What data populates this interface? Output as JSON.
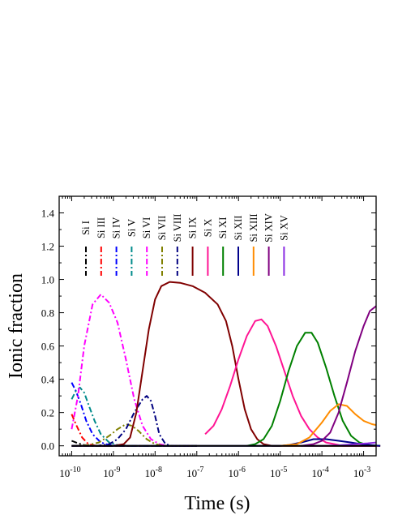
{
  "chart_data": {
    "type": "line",
    "title": "",
    "xlabel": "Time (s)",
    "ylabel": "Ionic fraction",
    "xscale": "log",
    "xlim_exp": [
      -10.3,
      -2.7
    ],
    "ylim": [
      -0.06,
      1.5
    ],
    "grid": false,
    "legend_placement": "top, vertical labels",
    "x_ticks": [
      {
        "base": "10",
        "exp": "-10",
        "value": -10
      },
      {
        "base": "10",
        "exp": "-9",
        "value": -9
      },
      {
        "base": "10",
        "exp": "-8",
        "value": -8
      },
      {
        "base": "10",
        "exp": "-7",
        "value": -7
      },
      {
        "base": "10",
        "exp": "-6",
        "value": -6
      },
      {
        "base": "10",
        "exp": "-5",
        "value": -5
      },
      {
        "base": "10",
        "exp": "-4",
        "value": -4
      },
      {
        "base": "10",
        "exp": "-3",
        "value": -3
      }
    ],
    "y_ticks": [
      "0.0",
      "0.2",
      "0.4",
      "0.6",
      "0.8",
      "1.0",
      "1.2",
      "1.4"
    ],
    "series": [
      {
        "name": "Si I",
        "color": "#000000",
        "dash": "dashdot",
        "points": [
          [
            -10,
            0.03
          ],
          [
            -9.85,
            0.015
          ],
          [
            -9.7,
            0.005
          ],
          [
            -9.5,
            0
          ],
          [
            -7,
            0
          ]
        ]
      },
      {
        "name": "Si III",
        "color": "#ff0000",
        "dash": "dashdot",
        "points": [
          [
            -10,
            0.19
          ],
          [
            -9.9,
            0.13
          ],
          [
            -9.75,
            0.05
          ],
          [
            -9.6,
            0.01
          ],
          [
            -9.4,
            0
          ],
          [
            -7,
            0
          ]
        ]
      },
      {
        "name": "Si IV",
        "color": "#0000ff",
        "dash": "dashdot",
        "points": [
          [
            -10,
            0.38
          ],
          [
            -9.9,
            0.33
          ],
          [
            -9.78,
            0.25
          ],
          [
            -9.65,
            0.15
          ],
          [
            -9.5,
            0.07
          ],
          [
            -9.3,
            0.02
          ],
          [
            -9.1,
            0.005
          ],
          [
            -8.8,
            0
          ],
          [
            -7,
            0
          ]
        ]
      },
      {
        "name": "Si V",
        "color": "#008b8b",
        "dash": "dashdot",
        "points": [
          [
            -10,
            0.28
          ],
          [
            -9.9,
            0.33
          ],
          [
            -9.8,
            0.35
          ],
          [
            -9.7,
            0.32
          ],
          [
            -9.6,
            0.25
          ],
          [
            -9.45,
            0.15
          ],
          [
            -9.3,
            0.07
          ],
          [
            -9.1,
            0.02
          ],
          [
            -8.9,
            0.005
          ],
          [
            -8.6,
            0
          ],
          [
            -7,
            0
          ]
        ]
      },
      {
        "name": "Si VI",
        "color": "#ff00ff",
        "dash": "dashdot",
        "points": [
          [
            -10,
            0.1
          ],
          [
            -9.85,
            0.3
          ],
          [
            -9.7,
            0.6
          ],
          [
            -9.5,
            0.85
          ],
          [
            -9.3,
            0.91
          ],
          [
            -9.1,
            0.86
          ],
          [
            -8.9,
            0.74
          ],
          [
            -8.7,
            0.52
          ],
          [
            -8.5,
            0.28
          ],
          [
            -8.3,
            0.12
          ],
          [
            -8.1,
            0.04
          ],
          [
            -7.9,
            0.01
          ],
          [
            -7.7,
            0
          ],
          [
            -7,
            0
          ]
        ]
      },
      {
        "name": "Si VII",
        "color": "#808000",
        "dash": "dashdot",
        "points": [
          [
            -10,
            0
          ],
          [
            -9.6,
            0.005
          ],
          [
            -9.35,
            0.02
          ],
          [
            -9.1,
            0.06
          ],
          [
            -8.9,
            0.1
          ],
          [
            -8.7,
            0.13
          ],
          [
            -8.55,
            0.12
          ],
          [
            -8.4,
            0.09
          ],
          [
            -8.2,
            0.04
          ],
          [
            -8,
            0.01
          ],
          [
            -7.8,
            0
          ],
          [
            -7,
            0
          ]
        ]
      },
      {
        "name": "Si VIII",
        "color": "#000080",
        "dash": "dashdot",
        "points": [
          [
            -10,
            0
          ],
          [
            -9.4,
            0
          ],
          [
            -9.1,
            0.01
          ],
          [
            -8.9,
            0.04
          ],
          [
            -8.7,
            0.1
          ],
          [
            -8.5,
            0.2
          ],
          [
            -8.3,
            0.28
          ],
          [
            -8.2,
            0.3
          ],
          [
            -8.1,
            0.27
          ],
          [
            -8.0,
            0.18
          ],
          [
            -7.9,
            0.07
          ],
          [
            -7.75,
            0.01
          ],
          [
            -7.6,
            0
          ],
          [
            -7,
            0
          ]
        ]
      },
      {
        "name": "Si IX",
        "color": "#800000",
        "dash": "solid",
        "points": [
          [
            -10,
            0
          ],
          [
            -9,
            0
          ],
          [
            -8.75,
            0.01
          ],
          [
            -8.6,
            0.05
          ],
          [
            -8.45,
            0.2
          ],
          [
            -8.3,
            0.45
          ],
          [
            -8.15,
            0.7
          ],
          [
            -8.0,
            0.88
          ],
          [
            -7.85,
            0.96
          ],
          [
            -7.65,
            0.985
          ],
          [
            -7.4,
            0.98
          ],
          [
            -7.1,
            0.96
          ],
          [
            -6.8,
            0.92
          ],
          [
            -6.5,
            0.85
          ],
          [
            -6.3,
            0.75
          ],
          [
            -6.15,
            0.6
          ],
          [
            -6.0,
            0.4
          ],
          [
            -5.85,
            0.22
          ],
          [
            -5.7,
            0.1
          ],
          [
            -5.55,
            0.04
          ],
          [
            -5.4,
            0.01
          ],
          [
            -5.2,
            0
          ],
          [
            -2.6,
            0
          ]
        ]
      },
      {
        "name": "Si X",
        "color": "#ff1493",
        "dash": "solid",
        "points": [
          [
            -6.8,
            0.07
          ],
          [
            -6.6,
            0.12
          ],
          [
            -6.4,
            0.22
          ],
          [
            -6.2,
            0.36
          ],
          [
            -6.0,
            0.52
          ],
          [
            -5.8,
            0.66
          ],
          [
            -5.6,
            0.75
          ],
          [
            -5.45,
            0.76
          ],
          [
            -5.3,
            0.72
          ],
          [
            -5.1,
            0.6
          ],
          [
            -4.9,
            0.45
          ],
          [
            -4.7,
            0.3
          ],
          [
            -4.5,
            0.18
          ],
          [
            -4.3,
            0.1
          ],
          [
            -4.1,
            0.05
          ],
          [
            -3.9,
            0.02
          ],
          [
            -3.7,
            0.01
          ],
          [
            -3.5,
            0
          ],
          [
            -2.6,
            0
          ]
        ]
      },
      {
        "name": "Si XI",
        "color": "#008000",
        "dash": "solid",
        "points": [
          [
            -5.8,
            0
          ],
          [
            -5.6,
            0.01
          ],
          [
            -5.4,
            0.04
          ],
          [
            -5.2,
            0.12
          ],
          [
            -5.0,
            0.27
          ],
          [
            -4.8,
            0.45
          ],
          [
            -4.6,
            0.6
          ],
          [
            -4.4,
            0.68
          ],
          [
            -4.25,
            0.68
          ],
          [
            -4.1,
            0.62
          ],
          [
            -3.9,
            0.47
          ],
          [
            -3.7,
            0.3
          ],
          [
            -3.5,
            0.15
          ],
          [
            -3.3,
            0.06
          ],
          [
            -3.1,
            0.02
          ],
          [
            -2.9,
            0.005
          ],
          [
            -2.6,
            0
          ]
        ]
      },
      {
        "name": "Si XII",
        "color": "#00008b",
        "dash": "solid",
        "points": [
          [
            -10,
            0
          ],
          [
            -5,
            0
          ],
          [
            -4.8,
            0.005
          ],
          [
            -4.5,
            0.02
          ],
          [
            -4.2,
            0.04
          ],
          [
            -3.9,
            0.04
          ],
          [
            -3.6,
            0.03
          ],
          [
            -3.3,
            0.02
          ],
          [
            -3.0,
            0.008
          ],
          [
            -2.75,
            0.003
          ],
          [
            -2.6,
            0
          ]
        ]
      },
      {
        "name": "Si XIII",
        "color": "#ff8c00",
        "dash": "solid",
        "points": [
          [
            -5.0,
            0
          ],
          [
            -4.6,
            0.01
          ],
          [
            -4.3,
            0.05
          ],
          [
            -4.0,
            0.14
          ],
          [
            -3.8,
            0.21
          ],
          [
            -3.6,
            0.25
          ],
          [
            -3.4,
            0.24
          ],
          [
            -3.2,
            0.19
          ],
          [
            -3.0,
            0.15
          ],
          [
            -2.8,
            0.13
          ],
          [
            -2.7,
            0.125
          ]
        ]
      },
      {
        "name": "Si XIV",
        "color": "#800080",
        "dash": "solid",
        "points": [
          [
            -4.5,
            0
          ],
          [
            -4.2,
            0.01
          ],
          [
            -4.0,
            0.03
          ],
          [
            -3.8,
            0.08
          ],
          [
            -3.6,
            0.2
          ],
          [
            -3.4,
            0.38
          ],
          [
            -3.2,
            0.57
          ],
          [
            -3.0,
            0.72
          ],
          [
            -2.85,
            0.81
          ],
          [
            -2.7,
            0.84
          ]
        ]
      },
      {
        "name": "Si XV",
        "color": "#8a2be2",
        "dash": "solid",
        "points": [
          [
            -4.5,
            0
          ],
          [
            -4,
            0
          ],
          [
            -3.6,
            0.003
          ],
          [
            -3.2,
            0.01
          ],
          [
            -2.9,
            0.015
          ],
          [
            -2.7,
            0.02
          ]
        ]
      },
      {
        "name": "",
        "color": "#000000",
        "dash": "solid",
        "points": [
          [
            -10,
            0
          ],
          [
            -2.7,
            0
          ]
        ]
      }
    ]
  }
}
